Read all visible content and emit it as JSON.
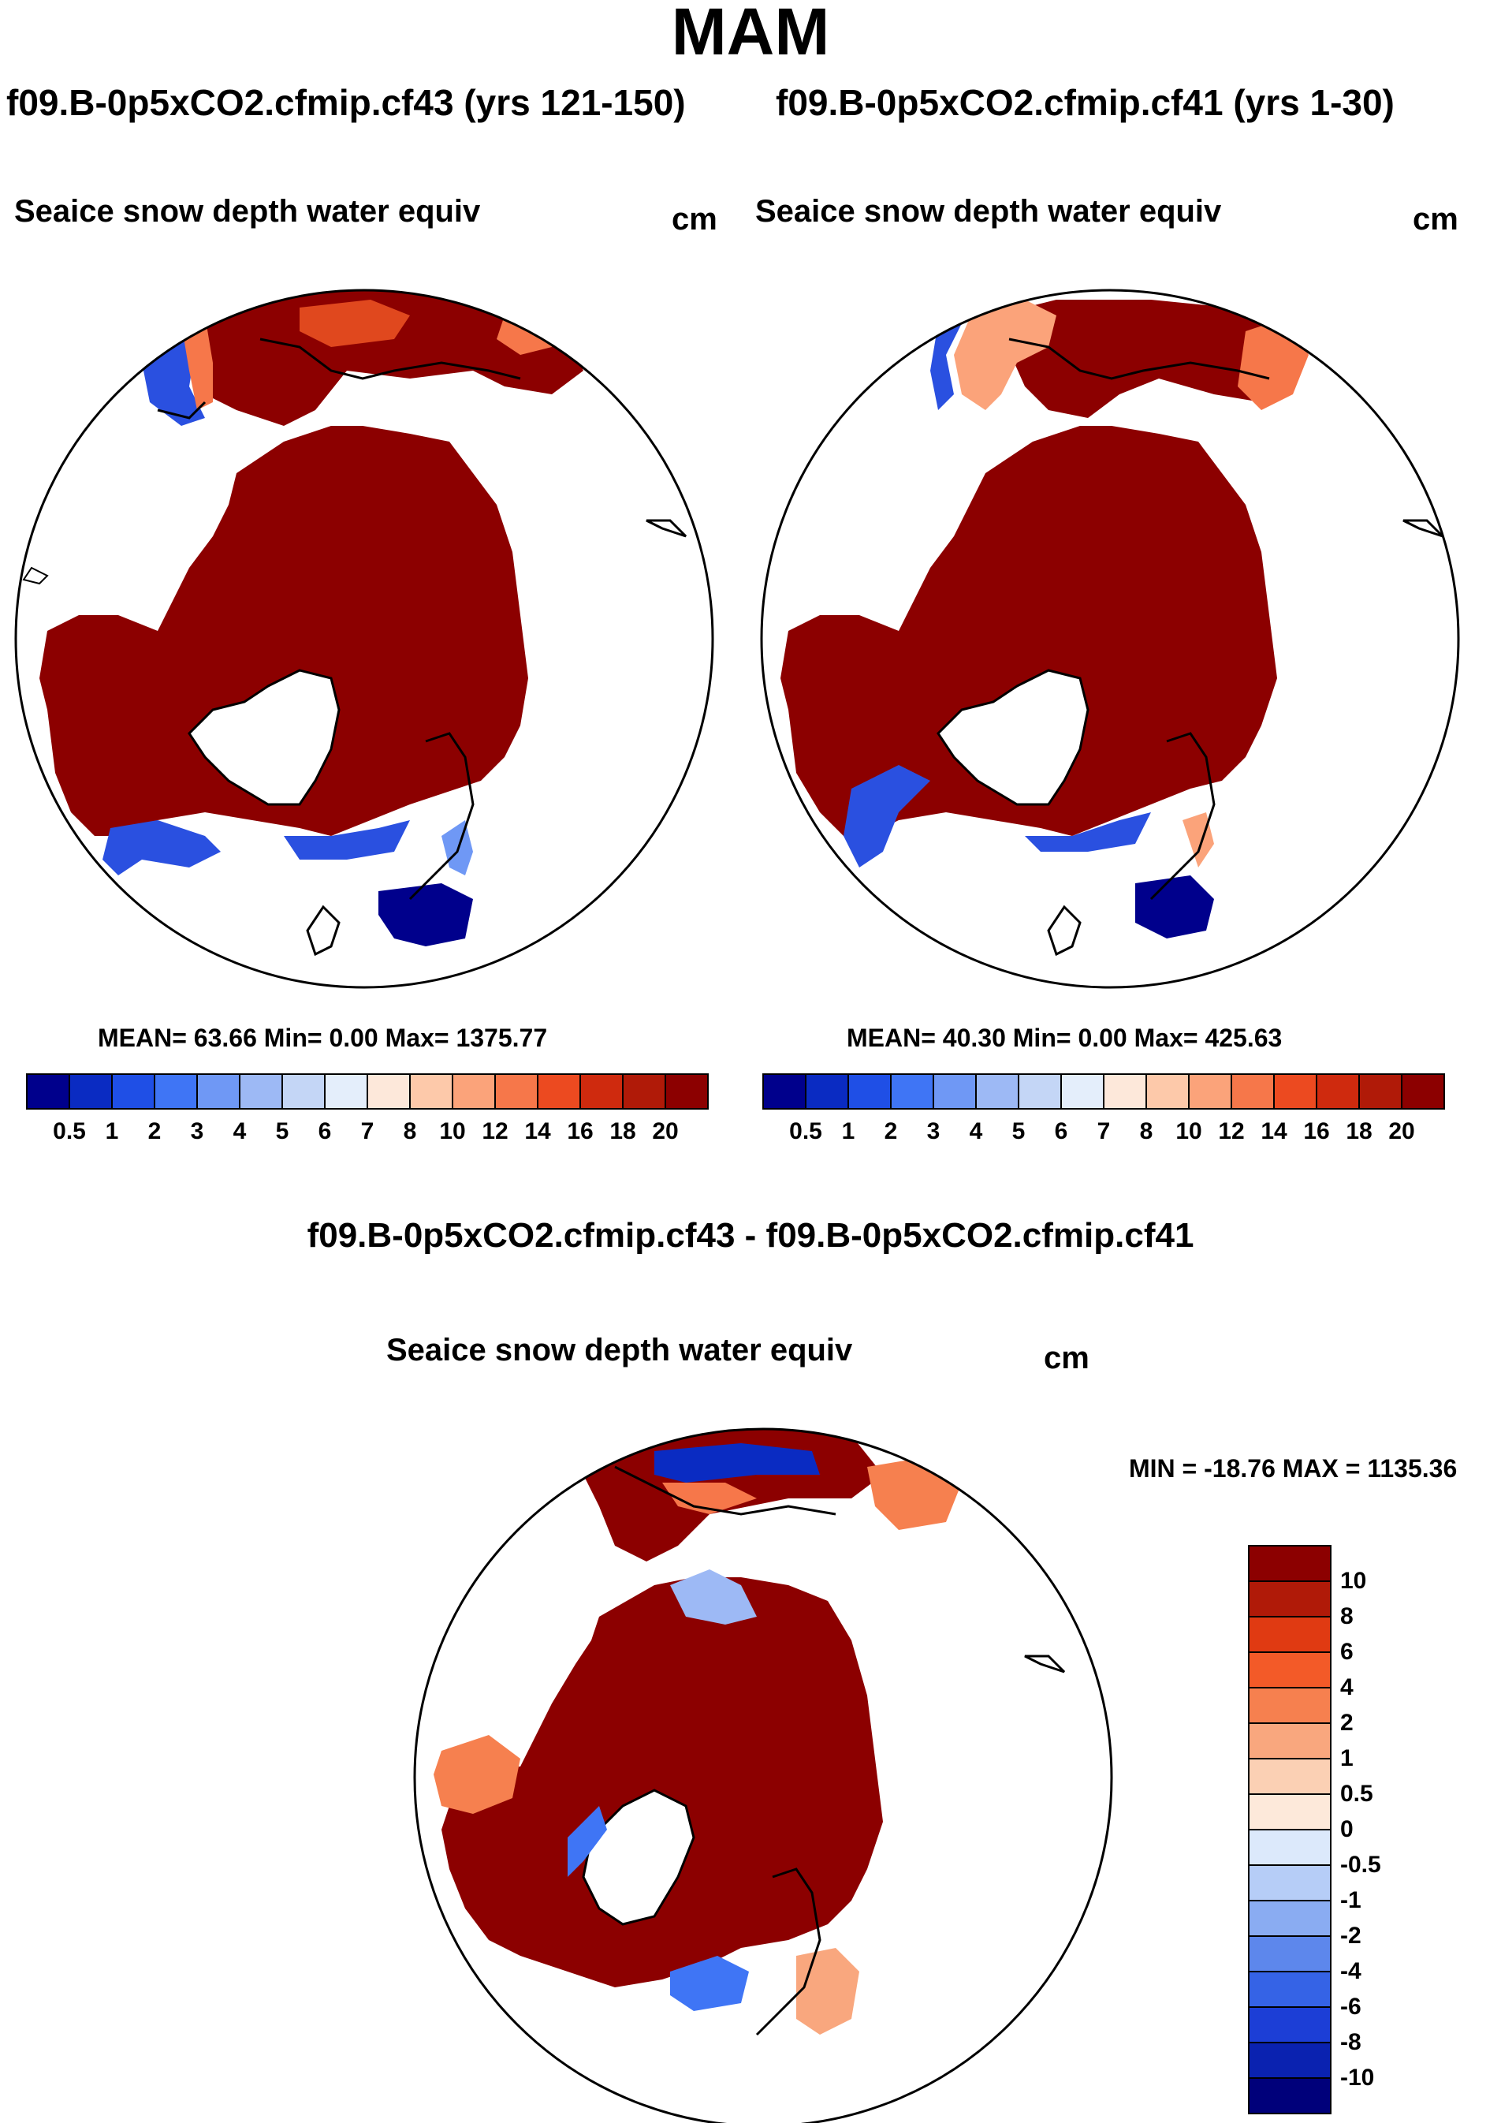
{
  "header": {
    "title": "MAM",
    "case_a": "f09.B-0p5xCO2.cfmip.cf43 (yrs 121-150)",
    "case_b": "f09.B-0p5xCO2.cfmip.cf41 (yrs 1-30)",
    "diff_title": "f09.B-0p5xCO2.cfmip.cf43 - f09.B-0p5xCO2.cfmip.cf41"
  },
  "panels": {
    "left": {
      "variable": "Seaice snow depth water equiv",
      "units": "cm",
      "stats": "MEAN=  63.66  Min=    0.00  Max= 1375.77"
    },
    "right": {
      "variable": "Seaice snow depth water equiv",
      "units": "cm",
      "stats": "MEAN=  40.30  Min=    0.00  Max= 425.63"
    },
    "diff": {
      "variable": "Seaice snow depth water equiv",
      "units": "cm",
      "stats": "MIN = -18.76 MAX = 1135.36"
    }
  },
  "chart_data": [
    {
      "type": "heatmap",
      "title": "Seaice snow depth water equiv",
      "projection": "north polar stereographic",
      "units": "cm",
      "stats": {
        "mean": 63.66,
        "min": 0.0,
        "max": 1375.77
      },
      "colorbar": {
        "levels": [
          "0.5",
          "1",
          "2",
          "3",
          "4",
          "5",
          "6",
          "7",
          "8",
          "10",
          "12",
          "14",
          "16",
          "18",
          "20"
        ],
        "colors": [
          "#00008c",
          "#0a2bc2",
          "#1f4fe6",
          "#3f75f5",
          "#6f98f5",
          "#9db9f5",
          "#c4d6f6",
          "#e4eefb",
          "#fde8da",
          "#fdc9aa",
          "#fba37a",
          "#f6774a",
          "#ec4a20",
          "#cf2a0e",
          "#b01a08",
          "#8c0000"
        ]
      }
    },
    {
      "type": "heatmap",
      "title": "Seaice snow depth water equiv",
      "projection": "north polar stereographic",
      "units": "cm",
      "stats": {
        "mean": 40.3,
        "min": 0.0,
        "max": 425.63
      },
      "colorbar": {
        "levels": [
          "0.5",
          "1",
          "2",
          "3",
          "4",
          "5",
          "6",
          "7",
          "8",
          "10",
          "12",
          "14",
          "16",
          "18",
          "20"
        ],
        "colors": [
          "#00008c",
          "#0a2bc2",
          "#1f4fe6",
          "#3f75f5",
          "#6f98f5",
          "#9db9f5",
          "#c4d6f6",
          "#e4eefb",
          "#fde8da",
          "#fdc9aa",
          "#fba37a",
          "#f6774a",
          "#ec4a20",
          "#cf2a0e",
          "#b01a08",
          "#8c0000"
        ]
      }
    },
    {
      "type": "heatmap",
      "title": "Seaice snow depth water equiv",
      "projection": "north polar stereographic",
      "units": "cm",
      "stats": {
        "min": -18.76,
        "max": 1135.36
      },
      "colorbar": {
        "levels": [
          "10",
          "8",
          "6",
          "4",
          "2",
          "1",
          "0.5",
          "0",
          "-0.5",
          "-1",
          "-2",
          "-4",
          "-6",
          "-8",
          "-10"
        ],
        "colors": [
          "#8c0000",
          "#b01a08",
          "#e03a12",
          "#f35a28",
          "#f6804f",
          "#f9a77e",
          "#fbd0b4",
          "#fde9da",
          "#dce9fb",
          "#b6cdf7",
          "#8aacf2",
          "#5d87ec",
          "#3563e6",
          "#1c3ed6",
          "#0a22b0",
          "#00007a"
        ]
      }
    }
  ]
}
